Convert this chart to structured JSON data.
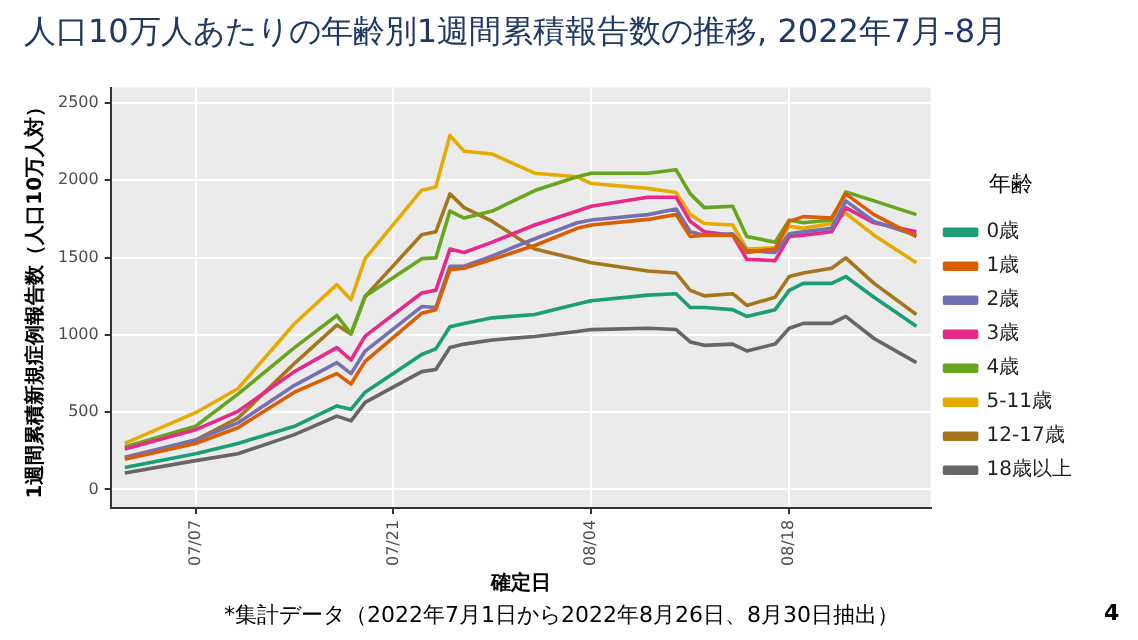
{
  "chart_data": {
    "type": "line",
    "title": "人口10万人あたりの年齢別1週間累積報告数の推移, 2022年7月-8月",
    "xlabel": "確定日",
    "ylabel": "1週間累積新規症例報告数（人口10万人対）",
    "legend_title": "年齢",
    "x": [
      "2022-07-02",
      "2022-07-07",
      "2022-07-10",
      "2022-07-14",
      "2022-07-17",
      "2022-07-18",
      "2022-07-19",
      "2022-07-23",
      "2022-07-24",
      "2022-07-25",
      "2022-07-26",
      "2022-07-28",
      "2022-07-31",
      "2022-08-03",
      "2022-08-04",
      "2022-08-08",
      "2022-08-10",
      "2022-08-11",
      "2022-08-12",
      "2022-08-14",
      "2022-08-15",
      "2022-08-17",
      "2022-08-18",
      "2022-08-19",
      "2022-08-21",
      "2022-08-22",
      "2022-08-24",
      "2022-08-27"
    ],
    "series": [
      {
        "name": "0歳",
        "color": "#1b9e77",
        "values": [
          142,
          230,
          297,
          408,
          540,
          518,
          629,
          873,
          909,
          1052,
          1074,
          1110,
          1132,
          1199,
          1221,
          1257,
          1266,
          1177,
          1177,
          1163,
          1119,
          1163,
          1288,
          1333,
          1333,
          1377,
          1243,
          1056
        ]
      },
      {
        "name": "1歳",
        "color": "#d95f02",
        "values": [
          195,
          297,
          399,
          629,
          749,
          682,
          828,
          1139,
          1163,
          1422,
          1431,
          1489,
          1578,
          1689,
          1711,
          1747,
          1778,
          1636,
          1645,
          1645,
          1533,
          1555,
          1734,
          1765,
          1756,
          1912,
          1778,
          1636
        ]
      },
      {
        "name": "2歳",
        "color": "#7570b3",
        "values": [
          208,
          319,
          430,
          673,
          820,
          749,
          895,
          1183,
          1177,
          1444,
          1444,
          1511,
          1622,
          1725,
          1743,
          1778,
          1814,
          1667,
          1645,
          1654,
          1545,
          1533,
          1654,
          1667,
          1689,
          1867,
          1734,
          1645
        ]
      },
      {
        "name": "3歳",
        "color": "#e7298a",
        "values": [
          261,
          385,
          505,
          762,
          917,
          837,
          992,
          1271,
          1288,
          1555,
          1533,
          1600,
          1711,
          1801,
          1832,
          1890,
          1890,
          1734,
          1667,
          1645,
          1489,
          1480,
          1636,
          1645,
          1667,
          1823,
          1725,
          1667
        ]
      },
      {
        "name": "4歳",
        "color": "#66a61e",
        "values": [
          275,
          408,
          616,
          917,
          1125,
          1006,
          1249,
          1493,
          1498,
          1801,
          1756,
          1801,
          1934,
          2023,
          2046,
          2046,
          2068,
          1912,
          1823,
          1832,
          1636,
          1600,
          1743,
          1725,
          1743,
          1925,
          1867,
          1778
        ]
      },
      {
        "name": "5-11歳",
        "color": "#e6ab02",
        "values": [
          297,
          496,
          651,
          1072,
          1325,
          1227,
          1493,
          1936,
          1957,
          2291,
          2188,
          2170,
          2046,
          2023,
          1979,
          1948,
          1921,
          1778,
          1720,
          1711,
          1555,
          1564,
          1703,
          1689,
          1720,
          1787,
          1645,
          1466
        ]
      },
      {
        "name": "12-17歳",
        "color": "#a6761d",
        "values": [
          199,
          319,
          461,
          815,
          1063,
          1006,
          1249,
          1648,
          1667,
          1912,
          1823,
          1734,
          1555,
          1489,
          1466,
          1413,
          1400,
          1288,
          1252,
          1266,
          1190,
          1243,
          1377,
          1400,
          1431,
          1498,
          1333,
          1132
        ]
      },
      {
        "name": "18歳以上",
        "color": "#666666",
        "values": [
          106,
          186,
          230,
          354,
          474,
          443,
          563,
          762,
          776,
          918,
          940,
          967,
          989,
          1021,
          1034,
          1043,
          1034,
          954,
          932,
          940,
          896,
          940,
          1043,
          1074,
          1074,
          1119,
          976,
          820
        ]
      }
    ],
    "xlim": [
      "2022-07-01",
      "2022-08-28"
    ],
    "xticks": [
      {
        "value": "2022-07-07",
        "label": "07/07"
      },
      {
        "value": "2022-07-21",
        "label": "07/21"
      },
      {
        "value": "2022-08-04",
        "label": "08/04"
      },
      {
        "value": "2022-08-18",
        "label": "08/18"
      }
    ],
    "ylim": [
      -120,
      2600
    ],
    "yticks": [
      0,
      500,
      1000,
      1500,
      2000,
      2500
    ],
    "grid": true,
    "legend": "right",
    "marker": "none",
    "annotations": [
      "*集計データ（2022年7月1日から2022年8月26日、8月30日抽出）",
      "4"
    ]
  }
}
